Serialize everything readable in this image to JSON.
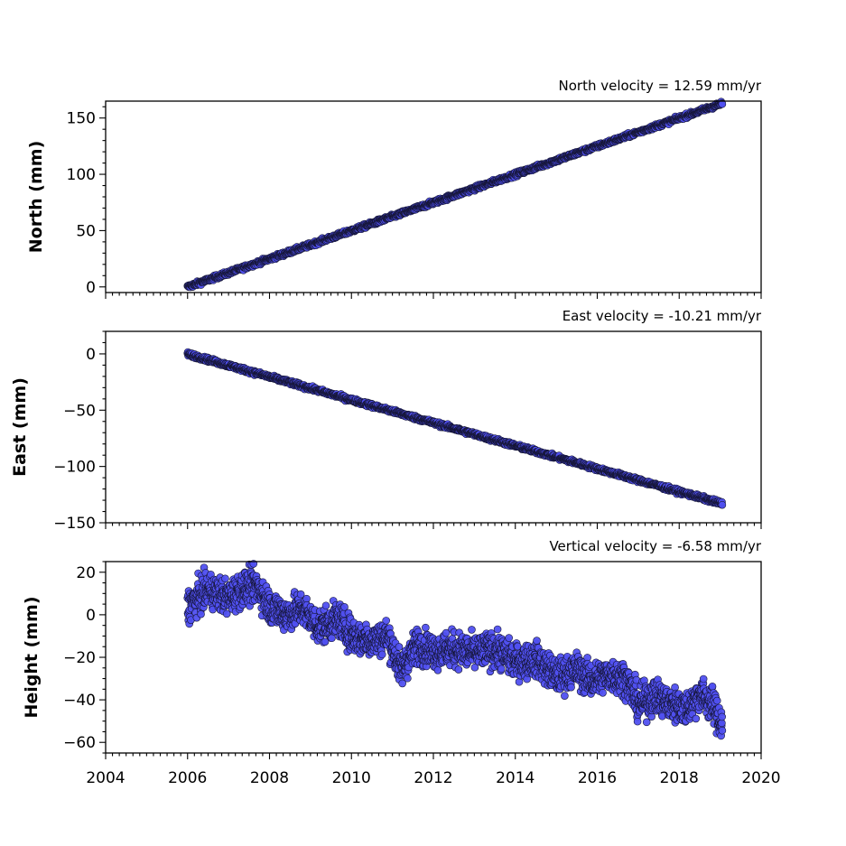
{
  "chart_data": [
    {
      "type": "scatter",
      "panel": "north",
      "title": "North velocity = 12.59 mm/yr",
      "ylabel": "North (mm)",
      "xlim": [
        2004,
        2020
      ],
      "ylim": [
        -5,
        165
      ],
      "yticks": [
        0,
        50,
        100,
        150
      ],
      "x_range_data": [
        2006.0,
        2019.05
      ],
      "trend": {
        "start": [
          2006.0,
          0
        ],
        "end": [
          2019.05,
          163
        ],
        "slope_mm_per_yr": 12.59
      },
      "series": [
        {
          "values_summary": "daily positions rising linearly from 0 mm (2006) to ~163 mm (2019.05)"
        }
      ],
      "marker_color": "#5050f0",
      "grid": false
    },
    {
      "type": "scatter",
      "panel": "east",
      "title": "East velocity = -10.21 mm/yr",
      "ylabel": "East (mm)",
      "xlim": [
        2004,
        2020
      ],
      "ylim": [
        -150,
        20
      ],
      "yticks": [
        0,
        -50,
        -100,
        -150
      ],
      "x_range_data": [
        2006.0,
        2019.05
      ],
      "trend": {
        "start": [
          2006.0,
          0
        ],
        "end": [
          2019.05,
          -133
        ],
        "slope_mm_per_yr": -10.21
      },
      "series": [
        {
          "values_summary": "daily positions falling linearly from 0 mm (2006) to ~-133 mm (2019.05)"
        }
      ],
      "marker_color": "#5050f0",
      "grid": false
    },
    {
      "type": "scatter",
      "panel": "height",
      "title": "Vertical velocity = -6.58 mm/yr",
      "ylabel": "Height (mm)",
      "xlabel_ticks": [
        "2004",
        "2006",
        "2008",
        "2010",
        "2012",
        "2014",
        "2016",
        "2018",
        "2020"
      ],
      "xlim": [
        2004,
        2020
      ],
      "ylim": [
        -65,
        25
      ],
      "yticks": [
        20,
        0,
        -20,
        -40,
        -60
      ],
      "x_range_data": [
        2006.0,
        2019.05
      ],
      "profile": [
        [
          2006.0,
          4
        ],
        [
          2006.5,
          12
        ],
        [
          2007.0,
          8
        ],
        [
          2007.3,
          12
        ],
        [
          2007.7,
          14
        ],
        [
          2008.0,
          4
        ],
        [
          2008.4,
          0
        ],
        [
          2008.8,
          3
        ],
        [
          2009.2,
          -6
        ],
        [
          2009.7,
          -2
        ],
        [
          2010.0,
          -10
        ],
        [
          2010.5,
          -12
        ],
        [
          2010.9,
          -10
        ],
        [
          2011.2,
          -26
        ],
        [
          2011.6,
          -14
        ],
        [
          2012.0,
          -17
        ],
        [
          2012.5,
          -16
        ],
        [
          2013.0,
          -18
        ],
        [
          2013.5,
          -16
        ],
        [
          2014.0,
          -22
        ],
        [
          2014.5,
          -21
        ],
        [
          2015.0,
          -29
        ],
        [
          2015.5,
          -26
        ],
        [
          2015.9,
          -31
        ],
        [
          2016.3,
          -28
        ],
        [
          2016.7,
          -30
        ],
        [
          2017.0,
          -42
        ],
        [
          2017.4,
          -38
        ],
        [
          2017.8,
          -42
        ],
        [
          2018.2,
          -44
        ],
        [
          2018.5,
          -37
        ],
        [
          2018.8,
          -42
        ],
        [
          2019.05,
          -52
        ]
      ],
      "noise_mm": 4,
      "series": [
        {
          "values_summary": "daily heights, noisy, from ~+5 mm in 2006 declining to ~-50 mm by 2019"
        }
      ],
      "marker_color": "#5050f0",
      "grid": false
    }
  ]
}
